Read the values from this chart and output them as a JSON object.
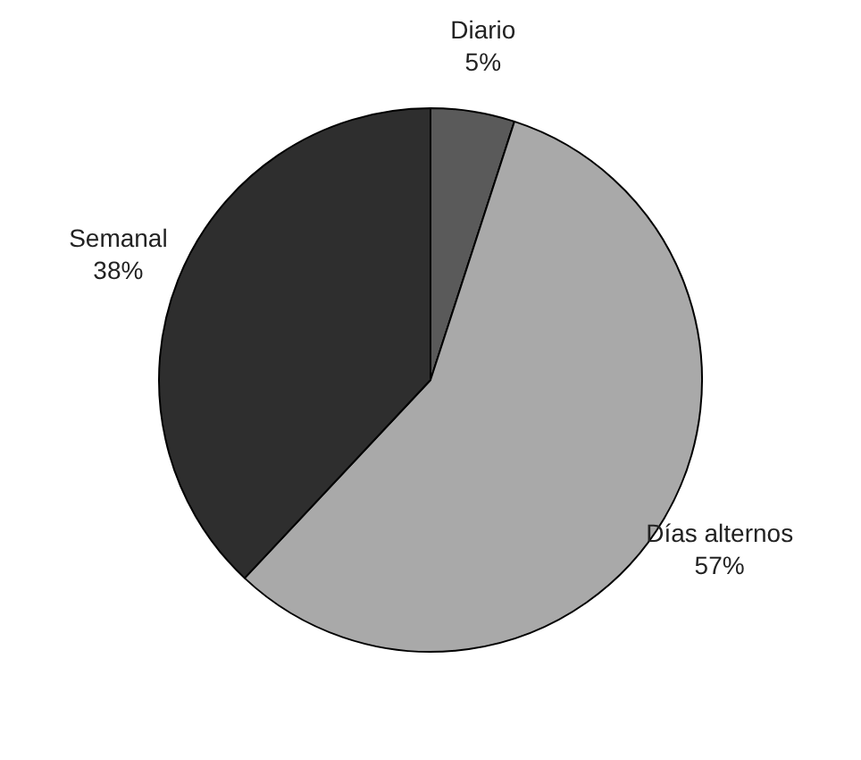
{
  "chart_data": {
    "type": "pie",
    "categories": [
      "Diario",
      "Días alternos",
      "Semanal"
    ],
    "values": [
      5,
      57,
      38
    ],
    "colors": [
      "#5a5a5a",
      "#a9a9a9",
      "#2e2e2e"
    ],
    "value_labels": [
      "5%",
      "57%",
      "38%"
    ],
    "legend": false
  }
}
